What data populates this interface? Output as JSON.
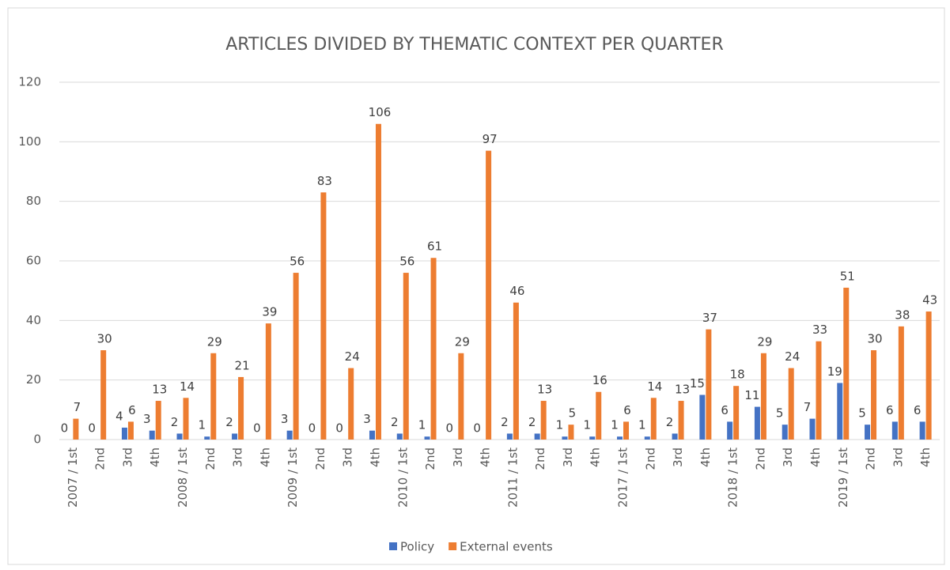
{
  "chart_data": {
    "type": "bar",
    "title": "ARTICLES DIVIDED BY THEMATIC CONTEXT PER QUARTER",
    "categories": [
      "2007 / 1st",
      "2nd",
      "3rd",
      "4th",
      "2008 / 1st",
      "2nd",
      "3rd",
      "4th",
      "2009 / 1st",
      "2nd",
      "3rd",
      "4th",
      "2010 / 1st",
      "2nd",
      "3rd",
      "4th",
      "2011 / 1st",
      "2nd",
      "3rd",
      "4th",
      "2017 / 1st",
      "2nd",
      "3rd",
      "4th",
      "2018 / 1st",
      "2nd",
      "3rd",
      "4th",
      "2019 / 1st",
      "2nd",
      "3rd",
      "4th"
    ],
    "series": [
      {
        "name": "Policy",
        "color": "#4472c4",
        "values": [
          0,
          0,
          4,
          3,
          2,
          1,
          2,
          0,
          3,
          0,
          0,
          3,
          2,
          1,
          0,
          0,
          2,
          2,
          1,
          1,
          1,
          1,
          2,
          15,
          6,
          11,
          5,
          7,
          19,
          5,
          6,
          6
        ]
      },
      {
        "name": "External events",
        "color": "#ed7d31",
        "values": [
          7,
          30,
          6,
          13,
          14,
          29,
          21,
          39,
          56,
          83,
          24,
          106,
          56,
          61,
          29,
          97,
          46,
          13,
          5,
          16,
          6,
          14,
          13,
          37,
          18,
          29,
          24,
          33,
          51,
          30,
          38,
          43
        ]
      }
    ],
    "ylim": [
      0,
      120
    ],
    "yticks": [
      0,
      20,
      40,
      60,
      80,
      100,
      120
    ],
    "grid": true,
    "legend": "bottom"
  }
}
